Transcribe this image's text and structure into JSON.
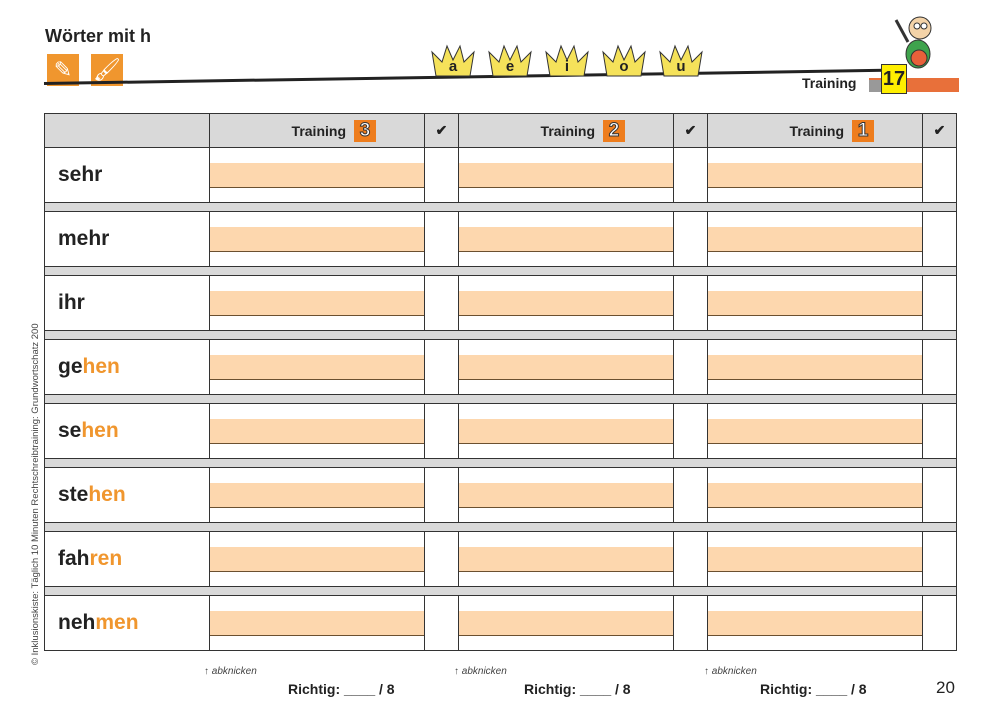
{
  "title": "Wörter mit h",
  "tools": [
    "pencil-icon",
    "brush-icon"
  ],
  "crowns": [
    "a",
    "e",
    "i",
    "o",
    "u"
  ],
  "training_label": "Training",
  "training_number": "17",
  "header": {
    "columns": [
      {
        "label": "Training",
        "badge": "3"
      },
      {
        "label": "Training",
        "badge": "2"
      },
      {
        "label": "Training",
        "badge": "1"
      }
    ],
    "check": "✔"
  },
  "words": [
    {
      "base": "sehr",
      "suffix": ""
    },
    {
      "base": "mehr",
      "suffix": ""
    },
    {
      "base": "ihr",
      "suffix": ""
    },
    {
      "base": "ge",
      "suffix": "hen"
    },
    {
      "base": "se",
      "suffix": "hen"
    },
    {
      "base": "ste",
      "suffix": "hen"
    },
    {
      "base": "fah",
      "suffix": "ren"
    },
    {
      "base": "neh",
      "suffix": "men"
    }
  ],
  "fold_label": "↑ abknicken",
  "score_label": "Richtig: ____ / 8",
  "page_number": "20",
  "side_note": "© Inklusionskiste: Täglich 10 Minuten Rechtschreibtraining: Grundwortschatz 200",
  "colors": {
    "orange": "#f0962e",
    "band": "#fdd7ae",
    "gray": "#d9d9d9"
  }
}
